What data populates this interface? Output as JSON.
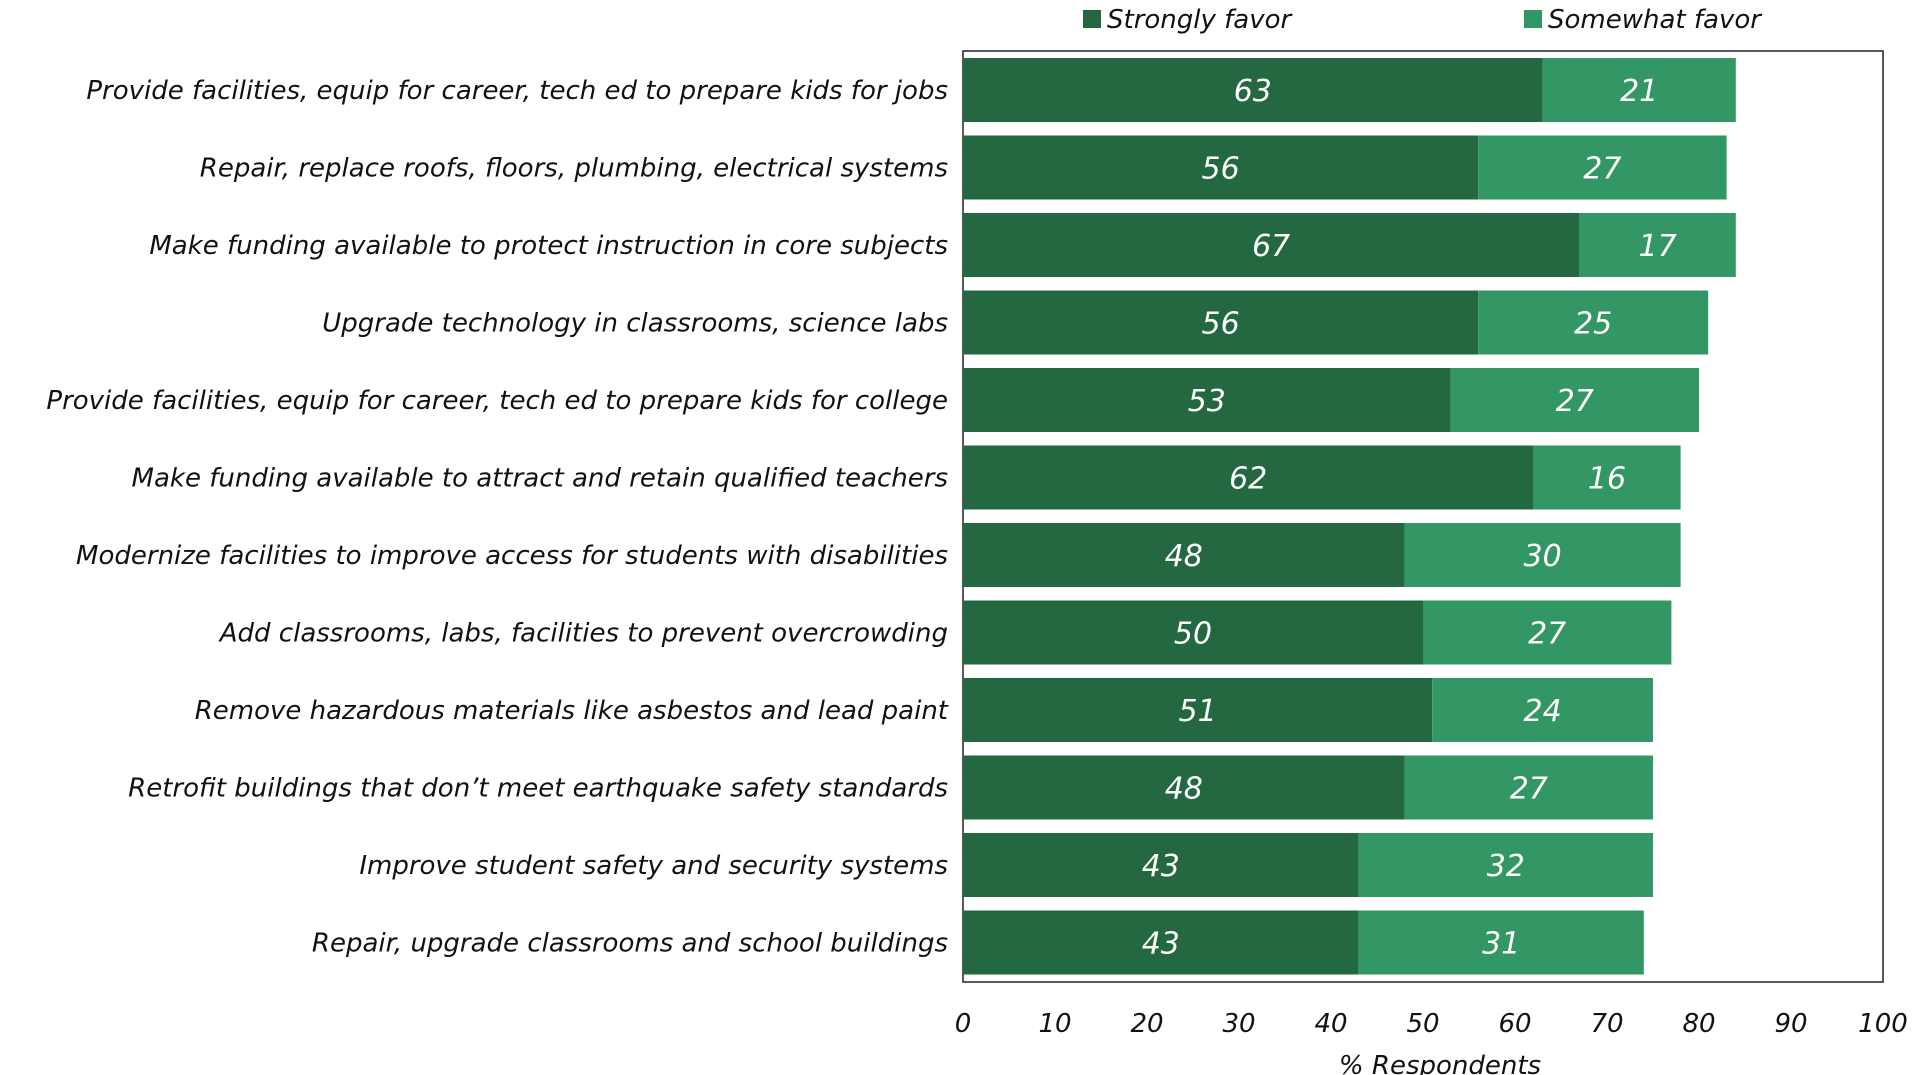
{
  "chart_data": {
    "type": "bar",
    "orientation": "horizontal",
    "stacked": true,
    "categories": [
      "Provide facilities, equip for career, tech ed to prepare kids for jobs",
      "Repair, replace roofs, floors, plumbing, electrical systems",
      "Make funding available to protect instruction in core subjects",
      "Upgrade technology in classrooms, science labs",
      "Provide facilities, equip for career, tech ed to prepare kids for college",
      "Make funding available to attract and retain qualified teachers",
      "Modernize facilities to improve access for students with disabilities",
      "Add classrooms, labs, facilities to prevent overcrowding",
      "Remove hazardous materials like asbestos and lead paint",
      "Retrofit buildings that don’t meet earthquake safety standards",
      "Improve student safety and security systems",
      "Repair, upgrade classrooms and school buildings"
    ],
    "series": [
      {
        "name": "Strongly favor",
        "color": "#236841",
        "values": [
          63,
          56,
          67,
          56,
          53,
          62,
          48,
          50,
          51,
          48,
          43,
          43
        ]
      },
      {
        "name": "Somewhat favor",
        "color": "#339765",
        "values": [
          21,
          27,
          17,
          25,
          27,
          16,
          30,
          27,
          24,
          27,
          32,
          31
        ]
      }
    ],
    "xlabel": "% Respondents",
    "xlim": [
      0,
      100
    ],
    "xticks": [
      "0",
      "10",
      "20",
      "30",
      "40",
      "50",
      "60",
      "70",
      "80",
      "90",
      "100"
    ],
    "grid": false,
    "legend_position": "top-right",
    "data_labels": true
  }
}
